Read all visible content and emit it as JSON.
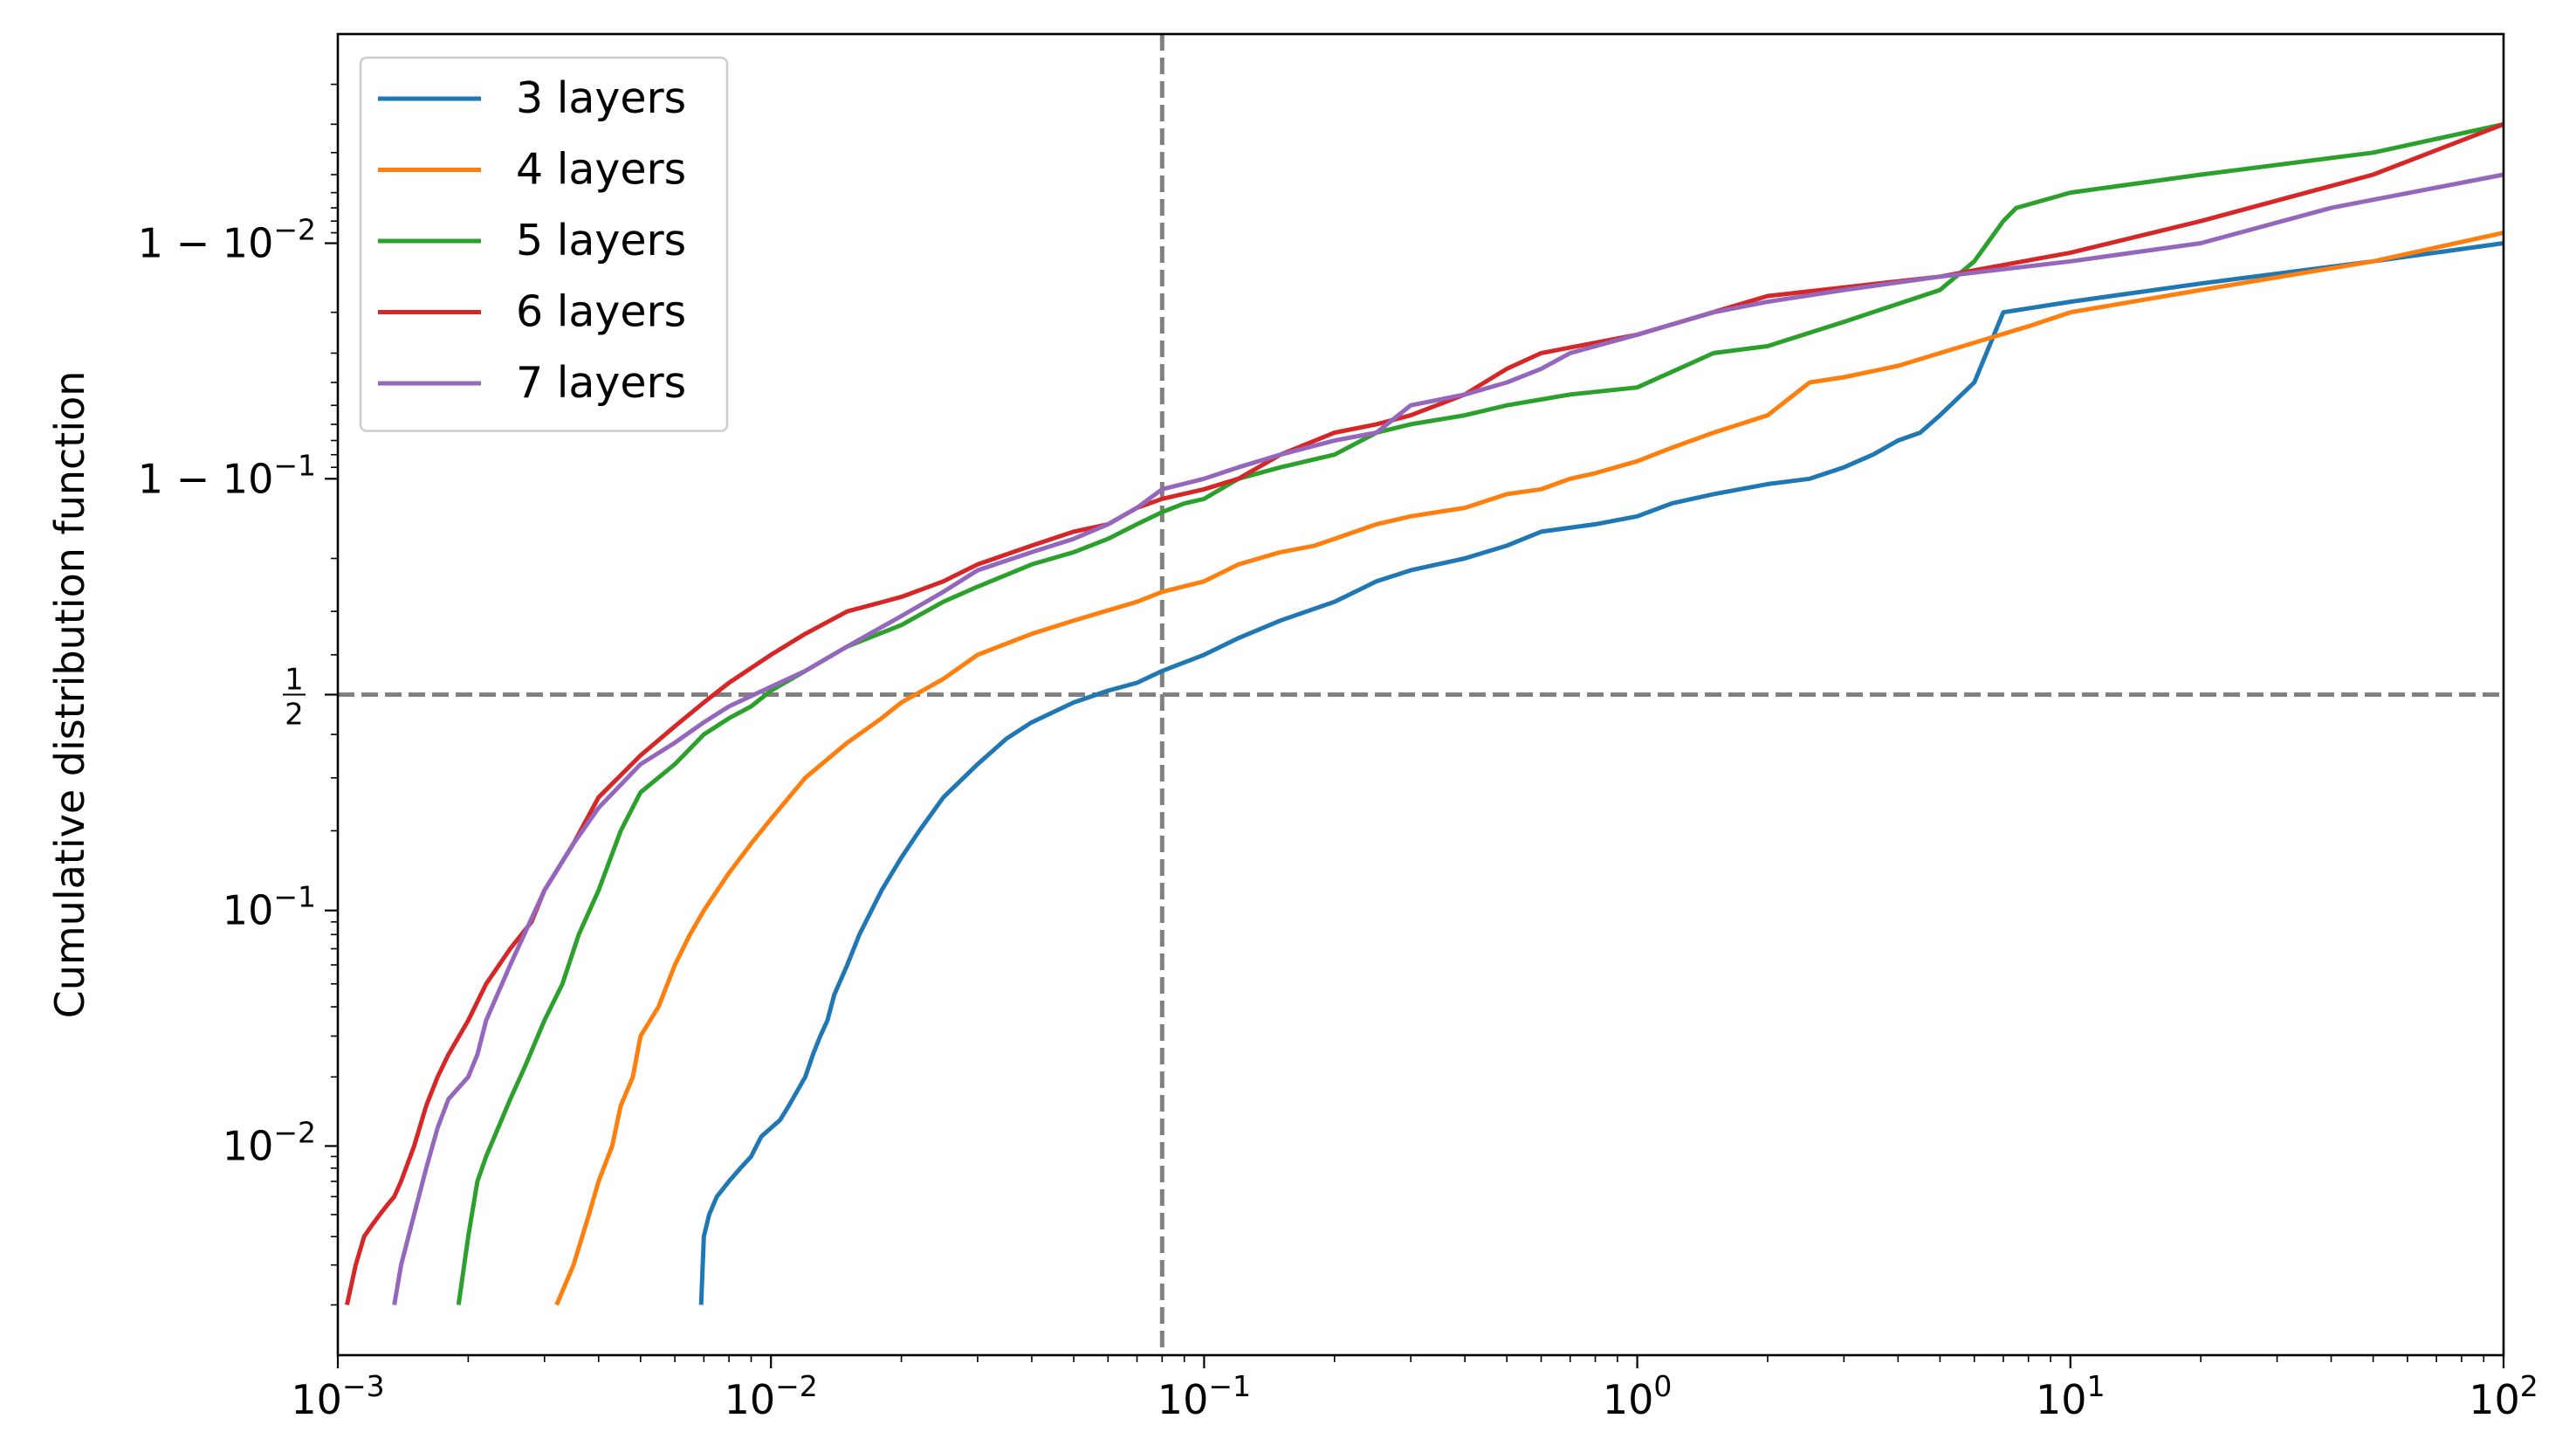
{
  "chart_data": {
    "type": "line",
    "title": "",
    "xlabel": "",
    "ylabel": "Cumulative distribution function",
    "x_scale": "log",
    "y_scale": "logit",
    "xlim": [
      0.001,
      100
    ],
    "ylim": [
      0.0012,
      0.9988
    ],
    "x_ticks": [
      {
        "value": 0.001,
        "base": "10",
        "exp": "−3"
      },
      {
        "value": 0.01,
        "base": "10",
        "exp": "−2"
      },
      {
        "value": 0.1,
        "base": "10",
        "exp": "−1"
      },
      {
        "value": 1,
        "base": "10",
        "exp": "0"
      },
      {
        "value": 10,
        "base": "10",
        "exp": "1"
      },
      {
        "value": 100,
        "base": "10",
        "exp": "2"
      }
    ],
    "y_ticks": [
      {
        "value": 0.01,
        "prefix": "",
        "base": "10",
        "exp": "−2",
        "fraction": false
      },
      {
        "value": 0.1,
        "prefix": "",
        "base": "10",
        "exp": "−1",
        "fraction": false
      },
      {
        "value": 0.5,
        "prefix": "",
        "num": "1",
        "den": "2",
        "fraction": true
      },
      {
        "value": 0.9,
        "prefix": "1 − ",
        "base": "10",
        "exp": "−1",
        "fraction": false
      },
      {
        "value": 0.99,
        "prefix": "1 − ",
        "base": "10",
        "exp": "−2",
        "fraction": false
      }
    ],
    "reference_lines": [
      {
        "orientation": "vertical",
        "value": 0.08,
        "color": "#808080",
        "style": "dashed"
      },
      {
        "orientation": "horizontal",
        "value": 0.5,
        "color": "#808080",
        "style": "dashed"
      }
    ],
    "legend": {
      "placement": "top-left"
    },
    "grid": false,
    "series": [
      {
        "name": "3 layers",
        "color": "#1f77b4",
        "x": [
          0.0069,
          0.007,
          0.0072,
          0.0075,
          0.008,
          0.0085,
          0.009,
          0.0095,
          0.0105,
          0.011,
          0.012,
          0.0125,
          0.013,
          0.0135,
          0.014,
          0.015,
          0.016,
          0.018,
          0.02,
          0.022,
          0.025,
          0.03,
          0.035,
          0.04,
          0.05,
          0.06,
          0.07,
          0.08,
          0.1,
          0.12,
          0.15,
          0.2,
          0.25,
          0.3,
          0.4,
          0.5,
          0.6,
          0.8,
          1.0,
          1.2,
          1.5,
          2.0,
          2.5,
          3.0,
          3.5,
          4.0,
          4.5,
          5.0,
          6.0,
          7.0,
          10,
          20,
          50,
          100
        ],
        "y": [
          0.002,
          0.004,
          0.005,
          0.006,
          0.007,
          0.008,
          0.009,
          0.011,
          0.013,
          0.015,
          0.02,
          0.025,
          0.03,
          0.035,
          0.045,
          0.06,
          0.08,
          0.12,
          0.16,
          0.2,
          0.26,
          0.33,
          0.39,
          0.43,
          0.48,
          0.51,
          0.53,
          0.56,
          0.6,
          0.64,
          0.68,
          0.72,
          0.76,
          0.78,
          0.8,
          0.82,
          0.84,
          0.85,
          0.86,
          0.875,
          0.885,
          0.895,
          0.9,
          0.91,
          0.92,
          0.93,
          0.935,
          0.945,
          0.96,
          0.98,
          0.982,
          0.985,
          0.988,
          0.99
        ]
      },
      {
        "name": "4 layers",
        "color": "#ff7f0e",
        "x": [
          0.0032,
          0.0035,
          0.0038,
          0.004,
          0.0043,
          0.0045,
          0.0048,
          0.005,
          0.0055,
          0.006,
          0.0065,
          0.007,
          0.008,
          0.009,
          0.01,
          0.012,
          0.015,
          0.018,
          0.02,
          0.025,
          0.03,
          0.04,
          0.05,
          0.07,
          0.08,
          0.1,
          0.12,
          0.15,
          0.18,
          0.2,
          0.25,
          0.3,
          0.4,
          0.5,
          0.6,
          0.7,
          0.8,
          1.0,
          1.2,
          1.5,
          2.0,
          2.5,
          3.0,
          4.0,
          5.0,
          8.0,
          10,
          20,
          50,
          100
        ],
        "y": [
          0.002,
          0.003,
          0.005,
          0.007,
          0.01,
          0.015,
          0.02,
          0.03,
          0.04,
          0.06,
          0.08,
          0.1,
          0.14,
          0.18,
          0.22,
          0.3,
          0.38,
          0.44,
          0.48,
          0.54,
          0.6,
          0.65,
          0.68,
          0.72,
          0.74,
          0.76,
          0.79,
          0.81,
          0.82,
          0.83,
          0.85,
          0.86,
          0.87,
          0.885,
          0.89,
          0.9,
          0.905,
          0.915,
          0.925,
          0.935,
          0.945,
          0.96,
          0.962,
          0.966,
          0.97,
          0.977,
          0.98,
          0.984,
          0.988,
          0.991
        ]
      },
      {
        "name": "5 layers",
        "color": "#2ca02c",
        "x": [
          0.0019,
          0.002,
          0.0021,
          0.0022,
          0.0023,
          0.0025,
          0.0027,
          0.003,
          0.0033,
          0.0036,
          0.004,
          0.0045,
          0.005,
          0.006,
          0.007,
          0.008,
          0.009,
          0.01,
          0.012,
          0.015,
          0.02,
          0.025,
          0.03,
          0.04,
          0.05,
          0.06,
          0.07,
          0.08,
          0.09,
          0.1,
          0.12,
          0.15,
          0.2,
          0.25,
          0.3,
          0.4,
          0.5,
          0.7,
          1.0,
          1.5,
          2.0,
          3.0,
          5.0,
          6.0,
          7.0,
          7.5,
          10,
          20,
          50,
          100
        ],
        "y": [
          0.002,
          0.004,
          0.007,
          0.009,
          0.011,
          0.016,
          0.022,
          0.035,
          0.05,
          0.08,
          0.12,
          0.2,
          0.27,
          0.33,
          0.4,
          0.44,
          0.47,
          0.51,
          0.56,
          0.62,
          0.67,
          0.72,
          0.75,
          0.79,
          0.81,
          0.83,
          0.85,
          0.865,
          0.875,
          0.88,
          0.9,
          0.91,
          0.92,
          0.935,
          0.94,
          0.945,
          0.95,
          0.955,
          0.958,
          0.97,
          0.972,
          0.978,
          0.984,
          0.988,
          0.992,
          0.993,
          0.994,
          0.995,
          0.996,
          0.997
        ]
      },
      {
        "name": "6 layers",
        "color": "#d62728",
        "x": [
          0.00105,
          0.0011,
          0.00115,
          0.0012,
          0.00125,
          0.0013,
          0.00135,
          0.0014,
          0.0015,
          0.0016,
          0.0017,
          0.0018,
          0.002,
          0.0022,
          0.0025,
          0.0028,
          0.003,
          0.0035,
          0.004,
          0.005,
          0.006,
          0.007,
          0.008,
          0.01,
          0.012,
          0.015,
          0.02,
          0.025,
          0.03,
          0.04,
          0.05,
          0.06,
          0.07,
          0.08,
          0.1,
          0.12,
          0.15,
          0.2,
          0.25,
          0.3,
          0.4,
          0.5,
          0.6,
          1.0,
          2.0,
          5.0,
          10,
          20,
          50,
          100
        ],
        "y": [
          0.002,
          0.003,
          0.004,
          0.0045,
          0.005,
          0.0055,
          0.006,
          0.007,
          0.01,
          0.015,
          0.02,
          0.025,
          0.035,
          0.05,
          0.07,
          0.09,
          0.12,
          0.18,
          0.26,
          0.35,
          0.42,
          0.48,
          0.53,
          0.6,
          0.65,
          0.7,
          0.73,
          0.76,
          0.79,
          0.82,
          0.84,
          0.85,
          0.87,
          0.88,
          0.89,
          0.9,
          0.92,
          0.935,
          0.94,
          0.945,
          0.955,
          0.965,
          0.97,
          0.975,
          0.983,
          0.986,
          0.989,
          0.992,
          0.995,
          0.997
        ]
      },
      {
        "name": "7 layers",
        "color": "#9467bd",
        "x": [
          0.00135,
          0.0014,
          0.0015,
          0.0016,
          0.0017,
          0.0018,
          0.002,
          0.0021,
          0.0022,
          0.0025,
          0.003,
          0.0035,
          0.004,
          0.005,
          0.006,
          0.007,
          0.008,
          0.01,
          0.012,
          0.015,
          0.02,
          0.025,
          0.03,
          0.04,
          0.05,
          0.06,
          0.07,
          0.08,
          0.1,
          0.12,
          0.15,
          0.2,
          0.25,
          0.3,
          0.4,
          0.5,
          0.6,
          0.7,
          1.0,
          1.5,
          2.0,
          3.0,
          5.0,
          10,
          20,
          40,
          100
        ],
        "y": [
          0.002,
          0.003,
          0.005,
          0.008,
          0.012,
          0.016,
          0.02,
          0.025,
          0.035,
          0.06,
          0.12,
          0.18,
          0.24,
          0.33,
          0.38,
          0.43,
          0.47,
          0.52,
          0.56,
          0.62,
          0.69,
          0.74,
          0.78,
          0.81,
          0.83,
          0.85,
          0.87,
          0.89,
          0.9,
          0.91,
          0.92,
          0.93,
          0.935,
          0.95,
          0.955,
          0.96,
          0.965,
          0.97,
          0.975,
          0.98,
          0.982,
          0.984,
          0.986,
          0.988,
          0.99,
          0.993,
          0.995
        ]
      }
    ]
  }
}
